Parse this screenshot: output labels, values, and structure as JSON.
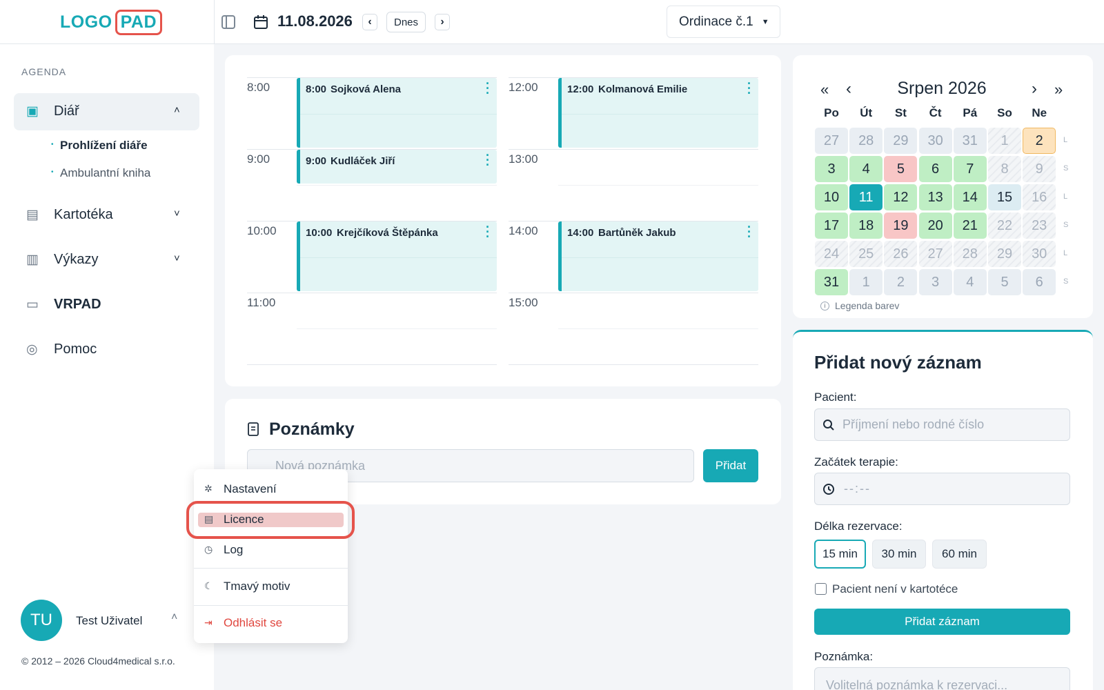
{
  "header": {
    "logo": [
      "LOGO",
      "PAD"
    ],
    "date": "11.08.2026",
    "today_button": "Dnes",
    "office": "Ordinace č.1"
  },
  "sidebar": {
    "section": "AGENDA",
    "menu": [
      {
        "label": "Diář",
        "items": [
          "Prohlížení diáře",
          "Ambulantní kniha"
        ]
      },
      {
        "label": "Kartotéka"
      },
      {
        "label": "Výkazy"
      },
      {
        "label": "VRPAD"
      },
      {
        "label": "Pomoc"
      }
    ],
    "user": {
      "initials": "TU",
      "name": "Test Uživatel"
    },
    "copyright": "© 2012 – 2026 Cloud4medical s.r.o."
  },
  "schedule": {
    "columns": [
      {
        "hours": [
          "8:00",
          "9:00",
          "10:00",
          "11:00"
        ],
        "appointments": [
          {
            "time": "8:00",
            "patient": "Sojková Alena",
            "duration": 60
          },
          {
            "time": "9:00",
            "patient": "Kudláček Jiří",
            "duration": 30
          },
          {
            "time": "10:00",
            "patient": "Krejčíková Štěpánka",
            "duration": 60
          }
        ]
      },
      {
        "hours": [
          "12:00",
          "13:00",
          "14:00",
          "15:00"
        ],
        "appointments": [
          {
            "time": "12:00",
            "patient": "Kolmanová Emilie",
            "duration": 60
          },
          {
            "time": "14:00",
            "patient": "Bartůněk Jakub",
            "duration": 60
          }
        ]
      }
    ]
  },
  "notes": {
    "title": "Poznámky",
    "placeholder": "Nová poznámka",
    "button": "Přidat"
  },
  "user_menu": {
    "items": [
      {
        "label": "Nastavení"
      },
      {
        "label": "Licence",
        "highlighted": true
      },
      {
        "label": "Log"
      },
      {
        "label": "Tmavý motiv"
      },
      {
        "label": "Odhlásit se",
        "color": "#e0473f"
      }
    ]
  },
  "calendar": {
    "month": "Srpen 2026",
    "weekdays": [
      "Po",
      "Út",
      "St",
      "Čt",
      "Pá",
      "So",
      "Ne"
    ],
    "legend": "Legenda barev",
    "weeks": [
      {
        "label": "L",
        "days": [
          {
            "day": 27,
            "fill": "#e9eef3",
            "ink": "#9aa6b5"
          },
          {
            "day": 28,
            "fill": "#e9eef3",
            "ink": "#9aa6b5"
          },
          {
            "day": 29,
            "fill": "#e9eef3",
            "ink": "#9aa6b5"
          },
          {
            "day": 30,
            "fill": "#e9eef3",
            "ink": "#9aa6b5"
          },
          {
            "day": 31,
            "fill": "#e9eef3",
            "ink": "#9aa6b5"
          },
          {
            "day": 1,
            "fill": "#f3f5f7",
            "ink": "#aab3bf"
          },
          {
            "day": 2,
            "fill": "#fde3bd",
            "ink": "#1d2b3a",
            "border": "#f0b860"
          }
        ]
      },
      {
        "label": "S",
        "days": [
          {
            "day": 3,
            "fill": "#bfeec4",
            "ink": "#1d2b3a"
          },
          {
            "day": 4,
            "fill": "#bfeec4",
            "ink": "#1d2b3a"
          },
          {
            "day": 5,
            "fill": "#f8c6c6",
            "ink": "#1d2b3a"
          },
          {
            "day": 6,
            "fill": "#bfeec4",
            "ink": "#1d2b3a"
          },
          {
            "day": 7,
            "fill": "#bfeec4",
            "ink": "#1d2b3a"
          },
          {
            "day": 8,
            "fill": "#f3f5f7",
            "ink": "#aab3bf"
          },
          {
            "day": 9,
            "fill": "#f3f5f7",
            "ink": "#aab3bf"
          }
        ]
      },
      {
        "label": "L",
        "days": [
          {
            "day": 10,
            "fill": "#bfeec4",
            "ink": "#1d2b3a"
          },
          {
            "day": 11,
            "fill": "#17a9b5",
            "ink": "#ffffff"
          },
          {
            "day": 12,
            "fill": "#bfeec4",
            "ink": "#1d2b3a"
          },
          {
            "day": 13,
            "fill": "#bfeec4",
            "ink": "#1d2b3a"
          },
          {
            "day": 14,
            "fill": "#bfeec4",
            "ink": "#1d2b3a"
          },
          {
            "day": 15,
            "fill": "#dcecf2",
            "ink": "#1d2b3a"
          },
          {
            "day": 16,
            "fill": "#f3f5f7",
            "ink": "#aab3bf"
          }
        ]
      },
      {
        "label": "S",
        "days": [
          {
            "day": 17,
            "fill": "#bfeec4",
            "ink": "#1d2b3a"
          },
          {
            "day": 18,
            "fill": "#bfeec4",
            "ink": "#1d2b3a"
          },
          {
            "day": 19,
            "fill": "#f8c6c6",
            "ink": "#1d2b3a"
          },
          {
            "day": 20,
            "fill": "#bfeec4",
            "ink": "#1d2b3a"
          },
          {
            "day": 21,
            "fill": "#bfeec4",
            "ink": "#1d2b3a"
          },
          {
            "day": 22,
            "fill": "#f3f5f7",
            "ink": "#aab3bf"
          },
          {
            "day": 23,
            "fill": "#f3f5f7",
            "ink": "#aab3bf"
          }
        ]
      },
      {
        "label": "L",
        "days": [
          {
            "day": 24,
            "fill": "#f3f5f7",
            "ink": "#aab3bf"
          },
          {
            "day": 25,
            "fill": "#f3f5f7",
            "ink": "#aab3bf"
          },
          {
            "day": 26,
            "fill": "#f3f5f7",
            "ink": "#aab3bf"
          },
          {
            "day": 27,
            "fill": "#f3f5f7",
            "ink": "#aab3bf"
          },
          {
            "day": 28,
            "fill": "#f3f5f7",
            "ink": "#aab3bf"
          },
          {
            "day": 29,
            "fill": "#f3f5f7",
            "ink": "#aab3bf"
          },
          {
            "day": 30,
            "fill": "#f3f5f7",
            "ink": "#aab3bf"
          }
        ]
      },
      {
        "label": "S",
        "days": [
          {
            "day": 31,
            "fill": "#bfeec4",
            "ink": "#1d2b3a"
          },
          {
            "day": 1,
            "fill": "#e9eef3",
            "ink": "#9aa6b5"
          },
          {
            "day": 2,
            "fill": "#e9eef3",
            "ink": "#9aa6b5"
          },
          {
            "day": 3,
            "fill": "#e9eef3",
            "ink": "#9aa6b5"
          },
          {
            "day": 4,
            "fill": "#e9eef3",
            "ink": "#9aa6b5"
          },
          {
            "day": 5,
            "fill": "#e9eef3",
            "ink": "#9aa6b5"
          },
          {
            "day": 6,
            "fill": "#e9eef3",
            "ink": "#9aa6b5"
          }
        ]
      }
    ]
  },
  "form": {
    "title": "Přidat nový záznam",
    "patient_label": "Pacient:",
    "patient_placeholder": "Příjmení nebo rodné číslo",
    "start_label": "Začátek terapie:",
    "start_placeholder": "--:--",
    "length_label": "Délka rezervace:",
    "lengths": [
      {
        "label": "15 min",
        "selected": true
      },
      {
        "label": "30 min"
      },
      {
        "label": "60 min"
      }
    ],
    "not_in_records": "Pacient není v kartotéce",
    "submit": "Přidat záznam",
    "note_label": "Poznámka:",
    "note_placeholder": "Volitelná poznámka k rezervaci..."
  }
}
